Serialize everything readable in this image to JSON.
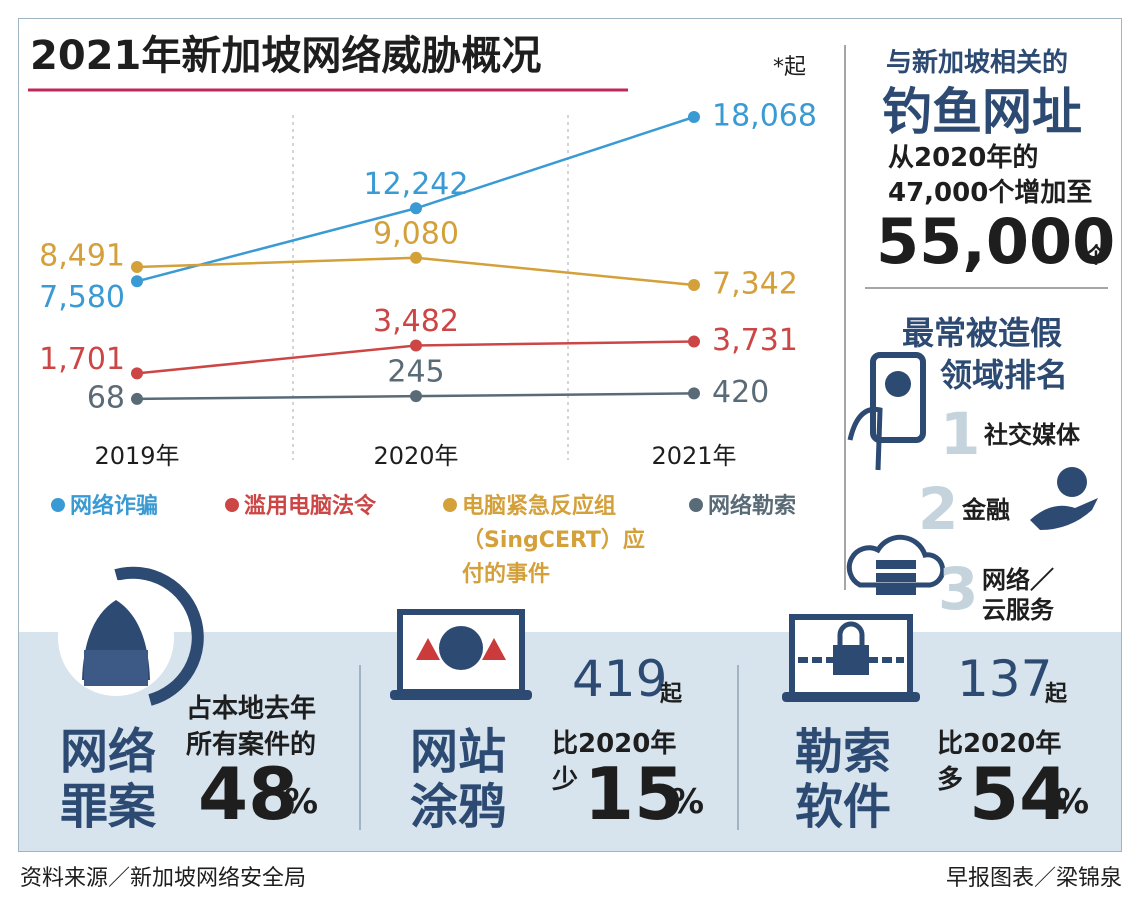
{
  "chart_data": {
    "type": "line",
    "title": "2021年新加坡网络威胁概况",
    "note": "*起",
    "categories": [
      "2019年",
      "2020年",
      "2021年"
    ],
    "series": [
      {
        "name": "网络诈骗",
        "color": "#3a9ad3",
        "values": [
          7580,
          12242,
          18068
        ],
        "value_labels": [
          "7,580",
          "12,242",
          "18,068"
        ]
      },
      {
        "name": "电脑紧急反应组（SingCERT）应付的事件",
        "color": "#d4a03a",
        "values": [
          8491,
          9080,
          7342
        ],
        "value_labels": [
          "8,491",
          "9,080",
          "7,342"
        ]
      },
      {
        "name": "滥用电脑法令",
        "color": "#cc4646",
        "values": [
          1701,
          3482,
          3731
        ],
        "value_labels": [
          "1,701",
          "3,482",
          "3,731"
        ]
      },
      {
        "name": "网络勒索",
        "color": "#5a6b78",
        "values": [
          68,
          245,
          420
        ]
      }
    ]
  },
  "phishing": {
    "heading": "与新加坡相关的",
    "title": "钓鱼网址",
    "line1": "从2020年的",
    "line2": "47,000个增加至",
    "number": "55,000",
    "unit": "个"
  },
  "ranking": {
    "title": [
      "最常被造假",
      "领域排名"
    ],
    "items": [
      {
        "rank": "1",
        "label": [
          "社交媒体"
        ]
      },
      {
        "rank": "2",
        "label": [
          "金融"
        ]
      },
      {
        "rank": "3",
        "label": [
          "网络／",
          "云服务"
        ]
      }
    ]
  },
  "stats": [
    {
      "title": [
        "网络",
        "罪案"
      ],
      "text": [
        "占本地去年",
        "所有案件的"
      ],
      "value": "48",
      "unit": "%"
    },
    {
      "title": [
        "网站",
        "涂鸦"
      ],
      "count": "419",
      "count_unit": "起",
      "text": [
        "比2020年",
        "少"
      ],
      "value": "15",
      "unit": "%"
    },
    {
      "title": [
        "勒索",
        "软件"
      ],
      "count": "137",
      "count_unit": "起",
      "text": [
        "比2020年",
        "多"
      ],
      "value": "54",
      "unit": "%"
    }
  ],
  "footer": {
    "source": "资料来源／新加坡网络安全局",
    "credit": "早报图表／梁锦泉"
  }
}
